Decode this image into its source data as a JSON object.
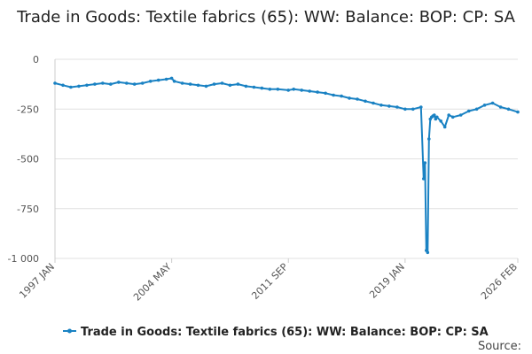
{
  "chart_data": {
    "type": "line",
    "title": "Trade in Goods: Textile fabrics (65): WW: Balance: BOP: CP: SA",
    "xlabel": "",
    "ylabel": "",
    "x_tick_labels": [
      "1997 JAN",
      "2004 MAY",
      "2011 SEP",
      "2019 JAN",
      "2026 FEB"
    ],
    "y_ticks": [
      0,
      -250,
      -500,
      -750,
      -1000
    ],
    "y_tick_labels": [
      "0",
      "-250",
      "-500",
      "-750",
      "-1 000"
    ],
    "ylim": [
      -1000,
      0
    ],
    "grid": true,
    "legend_position": "bottom",
    "source_label": "Source:",
    "colors": {
      "series": "#1a82c3",
      "grid": "#e0e0e0",
      "axis": "#cccccc"
    },
    "series": [
      {
        "name": "Trade in Goods: Textile fabrics (65): WW: Balance: BOP: CP: SA",
        "x": [
          "1997-01",
          "1997-07",
          "1998-01",
          "1998-07",
          "1999-01",
          "1999-07",
          "2000-01",
          "2000-07",
          "2001-01",
          "2001-07",
          "2002-01",
          "2002-07",
          "2003-01",
          "2003-07",
          "2004-01",
          "2004-05",
          "2004-07",
          "2005-01",
          "2005-07",
          "2006-01",
          "2006-07",
          "2007-01",
          "2007-07",
          "2008-01",
          "2008-07",
          "2009-01",
          "2009-07",
          "2010-01",
          "2010-07",
          "2011-01",
          "2011-09",
          "2012-01",
          "2012-07",
          "2013-01",
          "2013-07",
          "2014-01",
          "2014-07",
          "2015-01",
          "2015-07",
          "2016-01",
          "2016-07",
          "2017-01",
          "2017-07",
          "2018-01",
          "2018-07",
          "2019-01",
          "2019-07",
          "2020-01",
          "2020-03",
          "2020-04",
          "2020-05",
          "2020-06",
          "2020-07",
          "2020-08",
          "2020-09",
          "2020-10",
          "2020-11",
          "2020-12",
          "2021-01",
          "2021-04",
          "2021-07",
          "2021-10",
          "2022-01",
          "2022-07",
          "2023-01",
          "2023-07",
          "2024-01",
          "2024-07",
          "2025-01",
          "2025-07",
          "2026-02"
        ],
        "values": [
          -120,
          -130,
          -140,
          -135,
          -130,
          -125,
          -120,
          -125,
          -115,
          -120,
          -125,
          -120,
          -110,
          -105,
          -100,
          -95,
          -110,
          -120,
          -125,
          -130,
          -135,
          -125,
          -120,
          -130,
          -125,
          -135,
          -140,
          -145,
          -150,
          -150,
          -155,
          -150,
          -155,
          -160,
          -165,
          -170,
          -180,
          -185,
          -195,
          -200,
          -210,
          -220,
          -230,
          -235,
          -240,
          -250,
          -250,
          -240,
          -600,
          -520,
          -960,
          -970,
          -400,
          -300,
          -290,
          -285,
          -280,
          -300,
          -290,
          -310,
          -340,
          -280,
          -290,
          -280,
          -260,
          -250,
          -230,
          -220,
          -240,
          -250,
          -265
        ]
      }
    ]
  }
}
